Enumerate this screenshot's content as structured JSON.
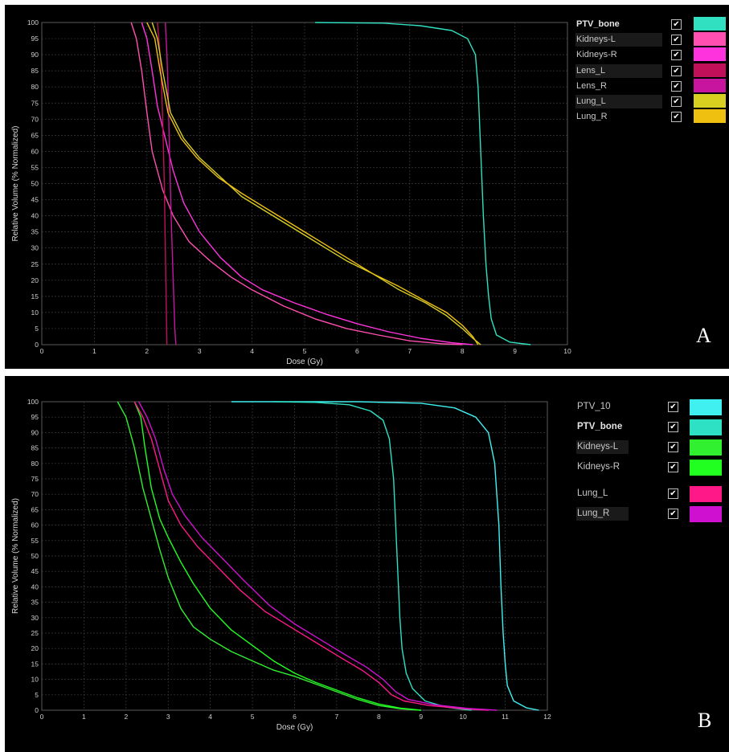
{
  "chart_data": [
    {
      "type": "line",
      "panel_label": "A",
      "xlabel": "Dose (Gy)",
      "ylabel": "Relative Volume (% Normalized)",
      "xlim": [
        0,
        10
      ],
      "ylim": [
        0,
        100
      ],
      "x_ticks": [
        "0",
        "1",
        "2",
        "3",
        "4",
        "5",
        "6",
        "7",
        "8",
        "9",
        "10"
      ],
      "y_ticks": [
        "0",
        "5",
        "10",
        "15",
        "20",
        "25",
        "30",
        "35",
        "40",
        "45",
        "50",
        "55",
        "60",
        "65",
        "70",
        "75",
        "80",
        "85",
        "90",
        "95",
        "100"
      ],
      "grid": true,
      "legend_position": "right",
      "series": [
        {
          "name": "PTV_bone",
          "color": "#30e0c0",
          "points": [
            [
              5.2,
              100
            ],
            [
              6.5,
              99.8
            ],
            [
              7.2,
              99
            ],
            [
              7.8,
              97.5
            ],
            [
              8.1,
              95
            ],
            [
              8.25,
              90
            ],
            [
              8.3,
              80
            ],
            [
              8.35,
              60
            ],
            [
              8.4,
              40
            ],
            [
              8.45,
              25
            ],
            [
              8.5,
              15
            ],
            [
              8.55,
              8
            ],
            [
              8.65,
              3
            ],
            [
              8.9,
              0.8
            ],
            [
              9.3,
              0
            ]
          ]
        },
        {
          "name": "Kidneys-L",
          "color": "#ff4fb0",
          "points": [
            [
              1.7,
              100
            ],
            [
              1.8,
              95
            ],
            [
              1.9,
              85
            ],
            [
              2.0,
              72
            ],
            [
              2.1,
              60
            ],
            [
              2.3,
              48
            ],
            [
              2.5,
              40
            ],
            [
              2.8,
              32
            ],
            [
              3.2,
              26
            ],
            [
              3.6,
              21
            ],
            [
              4.0,
              17
            ],
            [
              4.6,
              12
            ],
            [
              5.2,
              8
            ],
            [
              5.8,
              5
            ],
            [
              6.4,
              3
            ],
            [
              7.0,
              1.2
            ],
            [
              7.6,
              0.3
            ],
            [
              8.0,
              0
            ]
          ]
        },
        {
          "name": "Kidneys-R",
          "color": "#ff33dd",
          "points": [
            [
              1.9,
              100
            ],
            [
              2.0,
              95
            ],
            [
              2.1,
              85
            ],
            [
              2.2,
              74
            ],
            [
              2.35,
              64
            ],
            [
              2.5,
              54
            ],
            [
              2.7,
              44
            ],
            [
              3.0,
              35
            ],
            [
              3.4,
              27
            ],
            [
              3.8,
              21
            ],
            [
              4.2,
              17
            ],
            [
              4.8,
              13
            ],
            [
              5.4,
              9.5
            ],
            [
              6.0,
              6.5
            ],
            [
              6.6,
              4
            ],
            [
              7.2,
              2
            ],
            [
              7.8,
              0.6
            ],
            [
              8.2,
              0
            ]
          ]
        },
        {
          "name": "Lens_L",
          "color": "#c0105a",
          "points": [
            [
              2.2,
              100
            ],
            [
              2.25,
              90
            ],
            [
              2.28,
              80
            ],
            [
              2.3,
              70
            ],
            [
              2.33,
              50
            ],
            [
              2.35,
              30
            ],
            [
              2.37,
              10
            ],
            [
              2.38,
              0
            ]
          ]
        },
        {
          "name": "Lens_R",
          "color": "#c815a0",
          "points": [
            [
              2.35,
              100
            ],
            [
              2.38,
              90
            ],
            [
              2.4,
              80
            ],
            [
              2.43,
              60
            ],
            [
              2.46,
              40
            ],
            [
              2.5,
              20
            ],
            [
              2.53,
              5
            ],
            [
              2.55,
              0
            ]
          ]
        },
        {
          "name": "Lung_L",
          "color": "#d8d020",
          "points": [
            [
              2.1,
              100
            ],
            [
              2.2,
              95
            ],
            [
              2.3,
              85
            ],
            [
              2.45,
              72
            ],
            [
              2.7,
              64
            ],
            [
              3.0,
              58
            ],
            [
              3.4,
              52
            ],
            [
              3.8,
              46
            ],
            [
              4.3,
              41
            ],
            [
              4.8,
              36
            ],
            [
              5.3,
              31
            ],
            [
              5.8,
              26
            ],
            [
              6.3,
              22
            ],
            [
              6.8,
              17
            ],
            [
              7.3,
              13
            ],
            [
              7.7,
              9
            ],
            [
              8.0,
              5
            ],
            [
              8.2,
              2
            ],
            [
              8.35,
              0
            ]
          ]
        },
        {
          "name": "Lung_R",
          "color": "#f0c010",
          "points": [
            [
              2.0,
              100
            ],
            [
              2.15,
              95
            ],
            [
              2.25,
              85
            ],
            [
              2.4,
              72
            ],
            [
              2.65,
              64
            ],
            [
              2.95,
              58
            ],
            [
              3.35,
              52
            ],
            [
              3.8,
              47
            ],
            [
              4.3,
              42
            ],
            [
              4.8,
              37
            ],
            [
              5.3,
              32
            ],
            [
              5.8,
              27
            ],
            [
              6.3,
              22
            ],
            [
              6.8,
              18
            ],
            [
              7.3,
              13.5
            ],
            [
              7.7,
              10
            ],
            [
              8.0,
              6
            ],
            [
              8.2,
              2.5
            ],
            [
              8.3,
              0
            ]
          ]
        }
      ]
    },
    {
      "type": "line",
      "panel_label": "B",
      "xlabel": "Dose (Gy)",
      "ylabel": "Relative Volume (% Normalized)",
      "xlim": [
        0,
        12
      ],
      "ylim": [
        0,
        100
      ],
      "x_ticks": [
        "0",
        "1",
        "2",
        "3",
        "4",
        "5",
        "6",
        "7",
        "8",
        "9",
        "10",
        "11",
        "12"
      ],
      "y_ticks": [
        "0",
        "5",
        "10",
        "15",
        "20",
        "25",
        "30",
        "35",
        "40",
        "45",
        "50",
        "55",
        "60",
        "65",
        "70",
        "75",
        "80",
        "85",
        "90",
        "95",
        "100"
      ],
      "grid": true,
      "legend_position": "right",
      "series": [
        {
          "name": "PTV_10",
          "color": "#40f0f0",
          "points": [
            [
              4.5,
              100
            ],
            [
              7.5,
              100
            ],
            [
              9.0,
              99.5
            ],
            [
              9.8,
              98
            ],
            [
              10.3,
              95
            ],
            [
              10.6,
              90
            ],
            [
              10.75,
              80
            ],
            [
              10.85,
              60
            ],
            [
              10.9,
              40
            ],
            [
              10.95,
              25
            ],
            [
              11.0,
              15
            ],
            [
              11.05,
              8
            ],
            [
              11.2,
              3
            ],
            [
              11.5,
              0.8
            ],
            [
              11.8,
              0
            ]
          ]
        },
        {
          "name": "PTV_bone",
          "color": "#2ee0c4",
          "points": [
            [
              5.5,
              100
            ],
            [
              6.5,
              99.8
            ],
            [
              7.3,
              99
            ],
            [
              7.8,
              97
            ],
            [
              8.1,
              94
            ],
            [
              8.25,
              88
            ],
            [
              8.35,
              75
            ],
            [
              8.4,
              60
            ],
            [
              8.45,
              45
            ],
            [
              8.5,
              30
            ],
            [
              8.55,
              20
            ],
            [
              8.65,
              12
            ],
            [
              8.8,
              7
            ],
            [
              9.1,
              3
            ],
            [
              9.6,
              1
            ],
            [
              10.2,
              0
            ]
          ]
        },
        {
          "name": "Kidneys-L",
          "color": "#30f030",
          "points": [
            [
              1.8,
              100
            ],
            [
              2.0,
              95
            ],
            [
              2.2,
              85
            ],
            [
              2.4,
              72
            ],
            [
              2.6,
              62
            ],
            [
              2.8,
              52
            ],
            [
              3.0,
              43
            ],
            [
              3.3,
              33
            ],
            [
              3.6,
              27
            ],
            [
              4.0,
              23
            ],
            [
              4.5,
              19
            ],
            [
              5.0,
              16
            ],
            [
              5.5,
              13
            ],
            [
              6.0,
              11
            ],
            [
              6.5,
              8.5
            ],
            [
              7.0,
              6
            ],
            [
              7.5,
              3.5
            ],
            [
              8.0,
              1.5
            ],
            [
              8.5,
              0.5
            ],
            [
              9.0,
              0
            ]
          ]
        },
        {
          "name": "Kidneys-R",
          "color": "#20ff20",
          "points": [
            [
              2.2,
              100
            ],
            [
              2.35,
              95
            ],
            [
              2.45,
              85
            ],
            [
              2.6,
              72
            ],
            [
              2.8,
              62
            ],
            [
              3.0,
              56
            ],
            [
              3.3,
              48
            ],
            [
              3.6,
              41
            ],
            [
              4.0,
              33
            ],
            [
              4.5,
              26
            ],
            [
              5.0,
              21
            ],
            [
              5.5,
              16
            ],
            [
              6.0,
              12
            ],
            [
              6.5,
              9
            ],
            [
              7.0,
              6.5
            ],
            [
              7.5,
              4
            ],
            [
              8.0,
              2
            ],
            [
              8.5,
              0.7
            ],
            [
              9.0,
              0
            ]
          ]
        },
        {
          "name": "Lung_L",
          "color": "#ff1888",
          "points": [
            [
              2.2,
              100
            ],
            [
              2.4,
              95
            ],
            [
              2.6,
              88
            ],
            [
              2.8,
              78
            ],
            [
              3.0,
              68
            ],
            [
              3.3,
              60
            ],
            [
              3.7,
              53
            ],
            [
              4.2,
              46
            ],
            [
              4.7,
              39
            ],
            [
              5.3,
              32
            ],
            [
              5.9,
              27
            ],
            [
              6.5,
              22
            ],
            [
              7.1,
              17
            ],
            [
              7.6,
              13
            ],
            [
              8.0,
              9
            ],
            [
              8.3,
              5
            ],
            [
              8.6,
              3
            ],
            [
              9.2,
              1.5
            ],
            [
              10.0,
              0.5
            ],
            [
              10.6,
              0
            ]
          ]
        },
        {
          "name": "Lung_R",
          "color": "#d010d0",
          "points": [
            [
              2.3,
              100
            ],
            [
              2.5,
              95
            ],
            [
              2.7,
              88
            ],
            [
              2.9,
              78
            ],
            [
              3.1,
              70
            ],
            [
              3.4,
              63
            ],
            [
              3.8,
              56
            ],
            [
              4.3,
              49
            ],
            [
              4.8,
              42
            ],
            [
              5.4,
              34
            ],
            [
              6.0,
              28
            ],
            [
              6.6,
              23
            ],
            [
              7.2,
              18
            ],
            [
              7.7,
              14
            ],
            [
              8.1,
              10
            ],
            [
              8.4,
              6
            ],
            [
              8.7,
              3.5
            ],
            [
              9.3,
              1.8
            ],
            [
              10.1,
              0.6
            ],
            [
              10.8,
              0
            ]
          ]
        }
      ]
    }
  ],
  "legendA": [
    {
      "name": "PTV_bone",
      "color": "#30e0c0",
      "bold": true,
      "shade": false
    },
    {
      "name": "Kidneys-L",
      "color": "#ff4fb0",
      "bold": false,
      "shade": true
    },
    {
      "name": "Kidneys-R",
      "color": "#ff33dd",
      "bold": false,
      "shade": false
    },
    {
      "name": "Lens_L",
      "color": "#c0105a",
      "bold": false,
      "shade": true
    },
    {
      "name": "Lens_R",
      "color": "#c815a0",
      "bold": false,
      "shade": false
    },
    {
      "name": "Lung_L",
      "color": "#d8d020",
      "bold": false,
      "shade": true
    },
    {
      "name": "Lung_R",
      "color": "#f0c010",
      "bold": false,
      "shade": false
    }
  ],
  "legendB": [
    {
      "name": "PTV_10",
      "color": "#40f0f0",
      "bold": false,
      "shade": false
    },
    {
      "name": "PTV_bone",
      "color": "#2ee0c4",
      "bold": true,
      "shade": false
    },
    {
      "name": "Kidneys-L",
      "color": "#30f030",
      "bold": false,
      "shade": true
    },
    {
      "name": "Kidneys-R",
      "color": "#20ff20",
      "bold": false,
      "shade": false
    },
    {
      "name": "Lung_L",
      "color": "#ff1888",
      "bold": false,
      "shade": false
    },
    {
      "name": "Lung_R",
      "color": "#d010d0",
      "bold": false,
      "shade": true
    }
  ],
  "check_glyph": "✔"
}
